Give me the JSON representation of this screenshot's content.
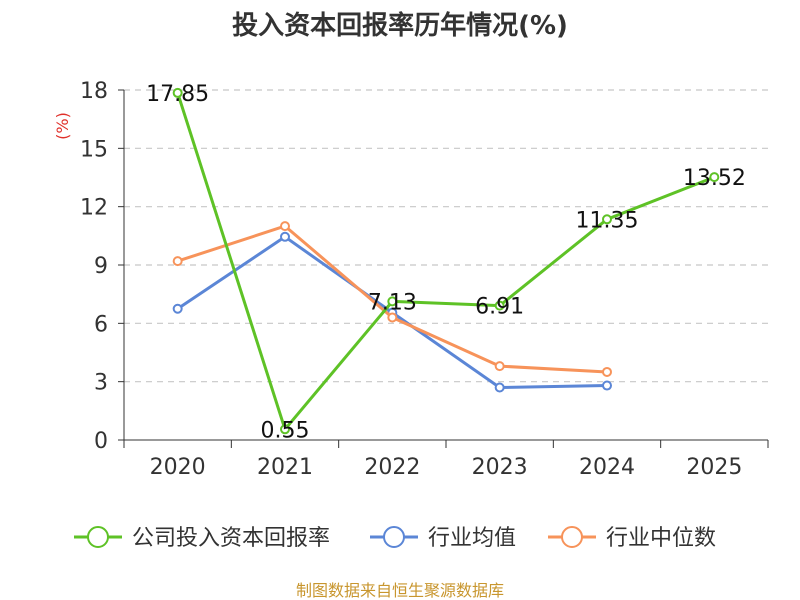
{
  "chart_data": {
    "type": "line",
    "title": "投入资本回报率历年情况(%)",
    "ylabel": "(%)",
    "xlabel": "",
    "categories": [
      "2020",
      "2021",
      "2022",
      "2023",
      "2024",
      "2025"
    ],
    "ylim": [
      0,
      18
    ],
    "yticks": [
      0,
      3,
      6,
      9,
      12,
      15,
      18
    ],
    "grid": true,
    "legend_position": "bottom",
    "series": [
      {
        "name": "公司投入资本回报率",
        "color": "#5ec226",
        "values": [
          17.85,
          0.55,
          7.13,
          6.91,
          11.35,
          13.52
        ],
        "labels": [
          "17.85",
          "0.55",
          "7.13",
          "6.91",
          "11.35",
          "13.52"
        ]
      },
      {
        "name": "行业均值",
        "color": "#5b86d6",
        "values": [
          6.75,
          10.45,
          6.55,
          2.7,
          2.8,
          null
        ],
        "labels": []
      },
      {
        "name": "行业中位数",
        "color": "#f7935a",
        "values": [
          9.2,
          11.0,
          6.3,
          3.8,
          3.5,
          null
        ],
        "labels": []
      }
    ],
    "source": "制图数据来自恒生聚源数据库"
  }
}
